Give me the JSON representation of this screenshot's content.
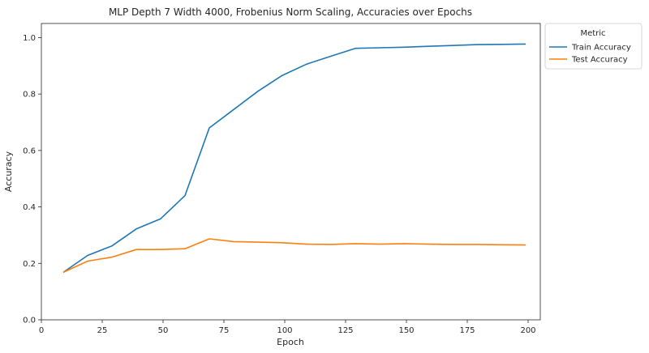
{
  "chart_data": {
    "type": "line",
    "title": "MLP Depth 7 Width 4000, Frobenius Norm Scaling, Accuracies over Epochs",
    "xlabel": "Epoch",
    "ylabel": "Accuracy",
    "xlim": [
      0,
      205
    ],
    "ylim": [
      0.0,
      1.05
    ],
    "xticks": [
      0,
      25,
      50,
      75,
      100,
      125,
      150,
      175,
      200
    ],
    "xtick_labels": [
      "0",
      "25",
      "50",
      "75",
      "100",
      "125",
      "150",
      "175",
      "200"
    ],
    "yticks": [
      0.0,
      0.2,
      0.4,
      0.6,
      0.8,
      1.0
    ],
    "ytick_labels": [
      "0.0",
      "0.2",
      "0.4",
      "0.6",
      "0.8",
      "1.0"
    ],
    "grid": false,
    "legend": {
      "title": "Metric",
      "placement": "outside-top-right"
    },
    "x": [
      9,
      19,
      29,
      39,
      49,
      59,
      69,
      79,
      89,
      99,
      109,
      119,
      129,
      139,
      149,
      159,
      169,
      179,
      189,
      199
    ],
    "series": [
      {
        "name": "Train Accuracy",
        "color": "#1f77b4",
        "values": [
          0.168,
          0.228,
          0.262,
          0.322,
          0.358,
          0.44,
          0.68,
          0.745,
          0.81,
          0.866,
          0.906,
          0.934,
          0.962,
          0.964,
          0.966,
          0.969,
          0.972,
          0.975,
          0.976,
          0.977
        ]
      },
      {
        "name": "Test Accuracy",
        "color": "#ff7f0e",
        "values": [
          0.168,
          0.208,
          0.222,
          0.249,
          0.249,
          0.252,
          0.287,
          0.277,
          0.275,
          0.273,
          0.268,
          0.267,
          0.27,
          0.268,
          0.27,
          0.268,
          0.267,
          0.267,
          0.266,
          0.265
        ]
      }
    ]
  }
}
